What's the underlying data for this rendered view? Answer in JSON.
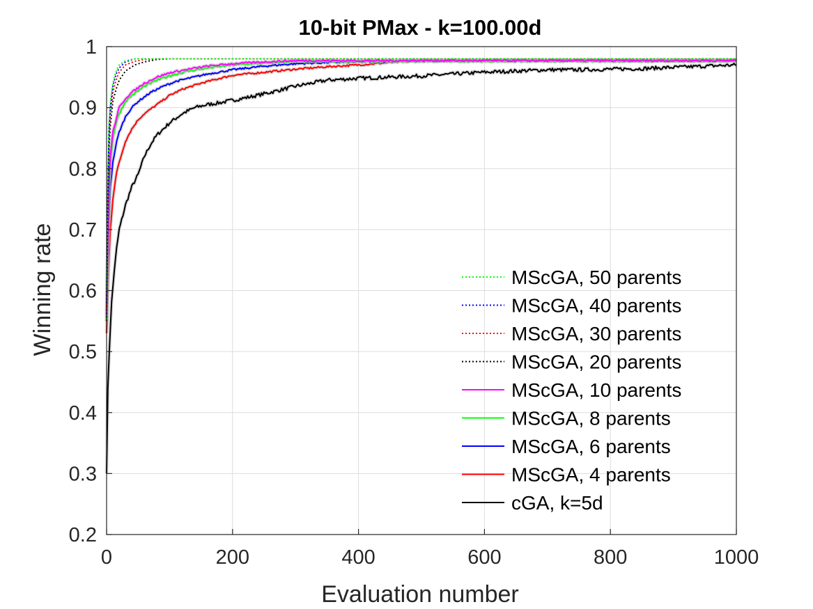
{
  "chart_data": {
    "type": "line",
    "title": "10-bit PMax - k=100.00d",
    "xlabel": "Evaluation number",
    "ylabel": "Winning rate",
    "xlim": [
      0,
      1000
    ],
    "ylim": [
      0.2,
      1.0
    ],
    "xticks": [
      "0",
      "200",
      "400",
      "600",
      "800",
      "1000"
    ],
    "yticks": [
      "0.2",
      "0.3",
      "0.4",
      "0.5",
      "0.6",
      "0.7",
      "0.8",
      "0.9",
      "1"
    ],
    "grid": true,
    "legend_position": "bottom-right",
    "series": [
      {
        "name": "MScGA, 50 parents",
        "color": "#00ff00",
        "style": "dotted",
        "x": [
          0,
          3,
          6,
          10,
          15,
          20,
          30,
          45,
          60,
          1000
        ],
        "y": [
          0.6,
          0.86,
          0.91,
          0.94,
          0.96,
          0.97,
          0.977,
          0.98,
          0.98,
          0.98
        ]
      },
      {
        "name": "MScGA, 40 parents",
        "color": "#0000ff",
        "style": "dotted",
        "x": [
          0,
          3,
          6,
          10,
          15,
          20,
          30,
          45,
          60,
          1000
        ],
        "y": [
          0.58,
          0.85,
          0.9,
          0.935,
          0.955,
          0.965,
          0.975,
          0.98,
          0.98,
          0.98
        ]
      },
      {
        "name": "MScGA, 30 parents",
        "color": "#ff0000",
        "style": "dotted",
        "x": [
          0,
          3,
          6,
          10,
          15,
          20,
          30,
          45,
          60,
          80,
          1000
        ],
        "y": [
          0.57,
          0.84,
          0.89,
          0.925,
          0.945,
          0.958,
          0.97,
          0.976,
          0.979,
          0.98,
          0.98
        ]
      },
      {
        "name": "MScGA, 20 parents",
        "color": "#000000",
        "style": "dotted",
        "x": [
          0,
          3,
          6,
          10,
          15,
          20,
          30,
          45,
          60,
          80,
          100,
          1000
        ],
        "y": [
          0.55,
          0.82,
          0.87,
          0.91,
          0.93,
          0.945,
          0.96,
          0.97,
          0.975,
          0.979,
          0.98,
          0.98
        ]
      },
      {
        "name": "MScGA, 10 parents",
        "color": "#ff00ff",
        "style": "solid",
        "x": [
          0,
          3,
          6,
          10,
          15,
          20,
          30,
          40,
          60,
          80,
          100,
          130,
          160,
          200,
          250,
          300,
          1000
        ],
        "y": [
          0.56,
          0.75,
          0.82,
          0.86,
          0.88,
          0.9,
          0.915,
          0.925,
          0.94,
          0.95,
          0.957,
          0.963,
          0.968,
          0.972,
          0.975,
          0.977,
          0.977
        ]
      },
      {
        "name": "MScGA, 8 parents",
        "color": "#00ff00",
        "style": "solid",
        "x": [
          0,
          3,
          6,
          10,
          15,
          20,
          30,
          40,
          60,
          80,
          100,
          130,
          160,
          200,
          250,
          300,
          1000
        ],
        "y": [
          0.55,
          0.74,
          0.81,
          0.85,
          0.875,
          0.89,
          0.91,
          0.92,
          0.935,
          0.945,
          0.952,
          0.96,
          0.965,
          0.97,
          0.973,
          0.976,
          0.977
        ]
      },
      {
        "name": "MScGA, 6 parents",
        "color": "#0000ff",
        "style": "solid",
        "x": [
          0,
          3,
          6,
          10,
          15,
          20,
          30,
          40,
          50,
          70,
          90,
          110,
          130,
          160,
          200,
          250,
          300,
          350,
          400,
          450,
          500,
          1000
        ],
        "y": [
          0.55,
          0.7,
          0.77,
          0.81,
          0.84,
          0.86,
          0.885,
          0.9,
          0.91,
          0.925,
          0.935,
          0.943,
          0.948,
          0.955,
          0.962,
          0.968,
          0.972,
          0.974,
          0.975,
          0.976,
          0.977,
          0.977
        ]
      },
      {
        "name": "MScGA, 4 parents",
        "color": "#ff0000",
        "style": "solid",
        "x": [
          0,
          3,
          6,
          10,
          15,
          20,
          30,
          40,
          50,
          60,
          80,
          100,
          120,
          150,
          180,
          200,
          250,
          300,
          350,
          400,
          450,
          500,
          1000
        ],
        "y": [
          0.53,
          0.63,
          0.7,
          0.75,
          0.79,
          0.81,
          0.845,
          0.865,
          0.88,
          0.89,
          0.905,
          0.92,
          0.93,
          0.94,
          0.948,
          0.953,
          0.958,
          0.963,
          0.967,
          0.97,
          0.974,
          0.977,
          0.977
        ]
      },
      {
        "name": "cGA, k=5d",
        "color": "#000000",
        "style": "solid",
        "x": [
          0,
          2,
          5,
          8,
          12,
          16,
          20,
          25,
          30,
          40,
          50,
          60,
          70,
          80,
          90,
          100,
          120,
          140,
          160,
          180,
          200,
          230,
          260,
          300,
          350,
          400,
          450,
          500,
          550,
          600,
          650,
          700,
          750,
          800,
          850,
          900,
          950,
          1000
        ],
        "y": [
          0.3,
          0.44,
          0.52,
          0.58,
          0.63,
          0.67,
          0.7,
          0.72,
          0.74,
          0.77,
          0.79,
          0.82,
          0.84,
          0.855,
          0.865,
          0.875,
          0.89,
          0.9,
          0.905,
          0.908,
          0.912,
          0.918,
          0.925,
          0.935,
          0.945,
          0.948,
          0.95,
          0.952,
          0.955,
          0.958,
          0.96,
          0.962,
          0.962,
          0.963,
          0.964,
          0.966,
          0.968,
          0.97
        ]
      }
    ]
  }
}
